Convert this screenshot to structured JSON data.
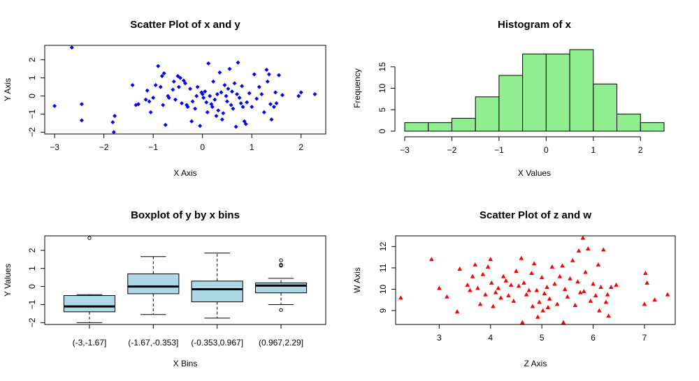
{
  "chart_data": [
    {
      "type": "scatter",
      "title": "Scatter Plot of x and y",
      "xlabel": "X Axis",
      "ylabel": "Y Axis",
      "xlim": [
        -3.2,
        2.5
      ],
      "ylim": [
        -2.1,
        2.8
      ],
      "x_ticks": [
        -3,
        -2,
        -1,
        0,
        1,
        2
      ],
      "y_ticks": [
        -2,
        -1,
        0,
        1,
        2
      ],
      "marker": "filled-diamond",
      "color": "#0000ff",
      "points": [
        [
          -2.65,
          2.68
        ],
        [
          -3.0,
          -0.55
        ],
        [
          -2.45,
          -0.45
        ],
        [
          -2.45,
          -1.35
        ],
        [
          -1.82,
          -1.45
        ],
        [
          -1.78,
          -1.1
        ],
        [
          -1.8,
          -2.0
        ],
        [
          -1.42,
          0.6
        ],
        [
          -1.35,
          -0.5
        ],
        [
          -1.3,
          -0.45
        ],
        [
          -1.15,
          -0.2
        ],
        [
          -1.12,
          0.3
        ],
        [
          -1.08,
          -0.3
        ],
        [
          -1.05,
          -0.9
        ],
        [
          -1.0,
          -0.1
        ],
        [
          -0.95,
          0.6
        ],
        [
          -0.9,
          1.65
        ],
        [
          -0.85,
          0.5
        ],
        [
          -0.82,
          1.1
        ],
        [
          -0.8,
          -0.5
        ],
        [
          -0.78,
          1.25
        ],
        [
          -0.75,
          -1.6
        ],
        [
          -0.7,
          0.0
        ],
        [
          -0.68,
          -0.1
        ],
        [
          -0.6,
          0.35
        ],
        [
          -0.58,
          0.8
        ],
        [
          -0.55,
          -0.2
        ],
        [
          -0.5,
          1.1
        ],
        [
          -0.48,
          0.5
        ],
        [
          -0.45,
          1.0
        ],
        [
          -0.42,
          -0.4
        ],
        [
          -0.38,
          0.85
        ],
        [
          -0.35,
          0.7
        ],
        [
          -0.32,
          -0.5
        ],
        [
          -0.3,
          -0.6
        ],
        [
          -0.25,
          0.4
        ],
        [
          -0.22,
          -1.4
        ],
        [
          -0.2,
          -0.3
        ],
        [
          -0.15,
          -0.7
        ],
        [
          -0.12,
          0.0
        ],
        [
          -0.1,
          0.5
        ],
        [
          -0.05,
          -1.65
        ],
        [
          -0.02,
          0.2
        ],
        [
          0.0,
          0.1
        ],
        [
          0.02,
          -0.1
        ],
        [
          0.05,
          0.25
        ],
        [
          0.08,
          -0.35
        ],
        [
          0.1,
          -0.9
        ],
        [
          0.12,
          1.8
        ],
        [
          0.15,
          0.0
        ],
        [
          0.18,
          -0.45
        ],
        [
          0.2,
          -0.6
        ],
        [
          0.22,
          0.8
        ],
        [
          0.25,
          -0.2
        ],
        [
          0.28,
          -1.1
        ],
        [
          0.3,
          0.1
        ],
        [
          0.32,
          -0.8
        ],
        [
          0.35,
          1.3
        ],
        [
          0.38,
          0.2
        ],
        [
          0.4,
          -1.3
        ],
        [
          0.42,
          -0.95
        ],
        [
          0.45,
          0.6
        ],
        [
          0.48,
          0.0
        ],
        [
          0.5,
          -0.3
        ],
        [
          0.52,
          0.4
        ],
        [
          0.55,
          1.5
        ],
        [
          0.58,
          -0.5
        ],
        [
          0.6,
          0.25
        ],
        [
          0.62,
          -0.7
        ],
        [
          0.65,
          0.7
        ],
        [
          0.68,
          -1.7
        ],
        [
          0.7,
          0.1
        ],
        [
          0.72,
          1.85
        ],
        [
          0.75,
          -0.1
        ],
        [
          0.78,
          -0.4
        ],
        [
          0.8,
          0.55
        ],
        [
          0.82,
          -0.6
        ],
        [
          0.85,
          -1.4
        ],
        [
          0.88,
          -1.55
        ],
        [
          0.9,
          -0.35
        ],
        [
          0.95,
          0.15
        ],
        [
          1.0,
          -0.6
        ],
        [
          1.05,
          1.2
        ],
        [
          1.1,
          -0.15
        ],
        [
          1.15,
          0.5
        ],
        [
          1.2,
          0.1
        ],
        [
          1.25,
          -0.9
        ],
        [
          1.3,
          1.45
        ],
        [
          1.32,
          0.8
        ],
        [
          1.35,
          1.2
        ],
        [
          1.38,
          -0.45
        ],
        [
          1.4,
          -1.3
        ],
        [
          1.45,
          -0.6
        ],
        [
          1.48,
          0.2
        ],
        [
          1.5,
          -0.4
        ],
        [
          1.55,
          1.15
        ],
        [
          1.62,
          0.05
        ],
        [
          1.95,
          0.0
        ],
        [
          2.0,
          0.2
        ],
        [
          2.28,
          0.1
        ]
      ]
    },
    {
      "type": "bar",
      "title": "Histogram of x",
      "xlabel": "X Values",
      "ylabel": "Frequency",
      "xlim": [
        -3.0,
        2.5
      ],
      "ylim": [
        0,
        20
      ],
      "x_ticks": [
        -3,
        -2,
        -1,
        0,
        1,
        2
      ],
      "y_ticks": [
        0,
        5,
        10,
        15
      ],
      "color": "#90ee90",
      "bins": [
        [
          -3.0,
          -2.5,
          2
        ],
        [
          -2.5,
          -2.0,
          2
        ],
        [
          -2.0,
          -1.5,
          3
        ],
        [
          -1.5,
          -1.0,
          8
        ],
        [
          -1.0,
          -0.5,
          13
        ],
        [
          -0.5,
          0.0,
          18
        ],
        [
          0.0,
          0.5,
          18
        ],
        [
          0.5,
          1.0,
          19
        ],
        [
          1.0,
          1.5,
          11
        ],
        [
          1.5,
          2.0,
          4
        ],
        [
          2.0,
          2.5,
          2
        ]
      ]
    },
    {
      "type": "box",
      "title": "Boxplot of y by x bins",
      "xlabel": "X Bins",
      "ylabel": "Y Values",
      "ylim": [
        -2.1,
        2.8
      ],
      "y_ticks": [
        -2,
        -1,
        0,
        1,
        2
      ],
      "color": "#add8e6",
      "categories": [
        "(-3,-1.67]",
        "(-1.67,-0.353]",
        "(-0.353,0.967]",
        "(0.967,2.29]"
      ],
      "boxes": [
        {
          "whisker_low": -2.0,
          "q1": -1.4,
          "median": -1.1,
          "q3": -0.5,
          "whisker_high": -0.45,
          "outliers": [
            2.68
          ]
        },
        {
          "whisker_low": -1.55,
          "q1": -0.4,
          "median": 0.0,
          "q3": 0.7,
          "whisker_high": 1.65,
          "outliers": []
        },
        {
          "whisker_low": -1.75,
          "q1": -0.85,
          "median": -0.15,
          "q3": 0.3,
          "whisker_high": 1.85,
          "outliers": []
        },
        {
          "whisker_low": -1.0,
          "q1": -0.35,
          "median": 0.05,
          "q3": 0.2,
          "whisker_high": 0.45,
          "outliers": [
            1.45,
            1.2,
            1.15,
            -1.3
          ]
        }
      ]
    },
    {
      "type": "scatter",
      "title": "Scatter Plot of z and w",
      "xlabel": "Z Axis",
      "ylabel": "W Axis",
      "xlim": [
        2.15,
        7.6
      ],
      "ylim": [
        8.35,
        12.5
      ],
      "x_ticks": [
        3,
        4,
        5,
        6,
        7
      ],
      "y_ticks": [
        9,
        10,
        11,
        12
      ],
      "marker": "filled-triangle",
      "color": "#ff0000",
      "points": [
        [
          2.25,
          9.6
        ],
        [
          2.85,
          11.4
        ],
        [
          3.0,
          10.05
        ],
        [
          3.15,
          9.65
        ],
        [
          3.35,
          8.95
        ],
        [
          3.4,
          10.95
        ],
        [
          3.55,
          10.2
        ],
        [
          3.6,
          9.95
        ],
        [
          3.65,
          10.6
        ],
        [
          3.7,
          11.15
        ],
        [
          3.75,
          10.05
        ],
        [
          3.8,
          9.3
        ],
        [
          3.85,
          10.7
        ],
        [
          3.9,
          9.75
        ],
        [
          3.95,
          11.05
        ],
        [
          4.0,
          11.4
        ],
        [
          4.02,
          10.3
        ],
        [
          4.05,
          9.2
        ],
        [
          4.1,
          9.85
        ],
        [
          4.15,
          10.05
        ],
        [
          4.2,
          9.6
        ],
        [
          4.25,
          10.6
        ],
        [
          4.3,
          10.4
        ],
        [
          4.35,
          9.7
        ],
        [
          4.4,
          10.2
        ],
        [
          4.45,
          9.45
        ],
        [
          4.5,
          10.85
        ],
        [
          4.55,
          10.15
        ],
        [
          4.6,
          11.45
        ],
        [
          4.62,
          8.45
        ],
        [
          4.65,
          10.3
        ],
        [
          4.7,
          9.75
        ],
        [
          4.75,
          9.95
        ],
        [
          4.8,
          10.75
        ],
        [
          4.82,
          9.2
        ],
        [
          4.85,
          11.2
        ],
        [
          4.9,
          9.95
        ],
        [
          4.92,
          8.7
        ],
        [
          4.95,
          9.4
        ],
        [
          5.0,
          10.55
        ],
        [
          5.02,
          9.0
        ],
        [
          5.05,
          9.8
        ],
        [
          5.1,
          10.1
        ],
        [
          5.12,
          9.15
        ],
        [
          5.15,
          9.55
        ],
        [
          5.2,
          11.05
        ],
        [
          5.25,
          10.25
        ],
        [
          5.3,
          9.3
        ],
        [
          5.35,
          10.6
        ],
        [
          5.4,
          11.1
        ],
        [
          5.42,
          8.45
        ],
        [
          5.45,
          10.0
        ],
        [
          5.5,
          9.65
        ],
        [
          5.55,
          10.5
        ],
        [
          5.6,
          11.35
        ],
        [
          5.65,
          9.25
        ],
        [
          5.7,
          10.35
        ],
        [
          5.72,
          11.8
        ],
        [
          5.75,
          9.85
        ],
        [
          5.8,
          12.4
        ],
        [
          5.82,
          9.9
        ],
        [
          5.85,
          10.8
        ],
        [
          5.9,
          11.9
        ],
        [
          5.95,
          9.45
        ],
        [
          6.0,
          10.25
        ],
        [
          6.05,
          9.7
        ],
        [
          6.1,
          11.15
        ],
        [
          6.12,
          9.0
        ],
        [
          6.15,
          10.1
        ],
        [
          6.2,
          11.85
        ],
        [
          6.25,
          9.4
        ],
        [
          6.28,
          9.75
        ],
        [
          6.3,
          8.75
        ],
        [
          6.35,
          10.1
        ],
        [
          6.45,
          10.2
        ],
        [
          7.0,
          9.3
        ],
        [
          7.02,
          10.75
        ],
        [
          7.05,
          10.3
        ],
        [
          7.2,
          9.5
        ],
        [
          7.45,
          9.75
        ]
      ]
    }
  ]
}
